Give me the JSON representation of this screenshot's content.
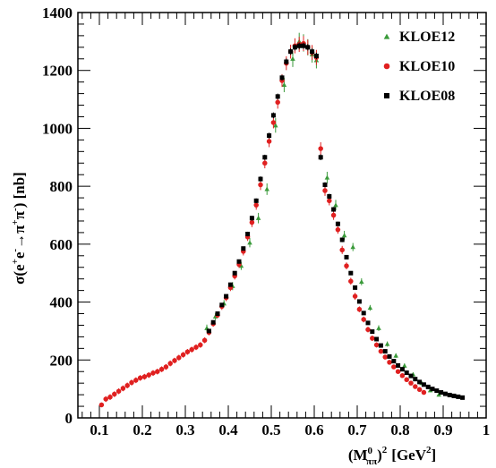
{
  "chart_data": {
    "type": "scatter",
    "title": "",
    "xlabel": "(M⁰ππ)² [GeV²]",
    "xlabel_parts": {
      "open": "(M",
      "sup": "0",
      "sub": "ππ",
      "close": ")",
      "pow": "2",
      "unit": "[GeV",
      "unit_pow": "2",
      "unit_close": "]"
    },
    "ylabel": "σ(e⁺e⁻→π⁺π⁻) [nb]",
    "ylabel_parts": {
      "a": "σ(e",
      "b": "+",
      "c": "e",
      "d": "-",
      "e": "→π",
      "f": "+",
      "g": "π",
      "h": "-",
      "i": ") [nb]"
    },
    "xlim": [
      0.05,
      1.0
    ],
    "ylim": [
      0,
      1400
    ],
    "x_ticks": [
      "0.1",
      "0.2",
      "0.3",
      "0.4",
      "0.5",
      "0.6",
      "0.7",
      "0.8",
      "0.9",
      "1"
    ],
    "y_ticks": [
      "0",
      "200",
      "400",
      "600",
      "800",
      "1000",
      "1200",
      "1400"
    ],
    "grid": false,
    "legend_position": "top-right",
    "series": [
      {
        "name": "KLOE12",
        "color": "#3a9a3a",
        "marker": "triangle",
        "x": [
          0.35,
          0.37,
          0.39,
          0.41,
          0.43,
          0.45,
          0.47,
          0.49,
          0.51,
          0.53,
          0.55,
          0.565,
          0.575,
          0.585,
          0.595,
          0.605,
          0.63,
          0.65,
          0.67,
          0.69,
          0.71,
          0.73,
          0.75,
          0.77,
          0.79,
          0.81,
          0.83,
          0.85,
          0.87,
          0.89
        ],
        "y": [
          310,
          350,
          395,
          455,
          525,
          605,
          690,
          790,
          1010,
          1150,
          1240,
          1300,
          1295,
          1280,
          1255,
          1235,
          830,
          735,
          630,
          590,
          470,
          380,
          310,
          255,
          215,
          180,
          150,
          120,
          95,
          80
        ],
        "err": [
          12,
          12,
          12,
          14,
          14,
          16,
          18,
          20,
          25,
          25,
          28,
          30,
          30,
          28,
          28,
          28,
          20,
          18,
          16,
          14,
          12,
          10,
          10,
          9,
          8,
          8,
          7,
          6,
          6,
          6
        ]
      },
      {
        "name": "KLOE10",
        "color": "#e02020",
        "marker": "circle",
        "x": [
          0.105,
          0.115,
          0.125,
          0.135,
          0.145,
          0.155,
          0.165,
          0.175,
          0.185,
          0.195,
          0.205,
          0.215,
          0.225,
          0.235,
          0.245,
          0.255,
          0.265,
          0.275,
          0.285,
          0.295,
          0.305,
          0.315,
          0.325,
          0.335,
          0.345,
          0.355,
          0.365,
          0.375,
          0.385,
          0.395,
          0.405,
          0.415,
          0.425,
          0.435,
          0.445,
          0.455,
          0.465,
          0.475,
          0.485,
          0.495,
          0.505,
          0.515,
          0.525,
          0.535,
          0.545,
          0.555,
          0.565,
          0.575,
          0.585,
          0.595,
          0.605,
          0.615,
          0.625,
          0.635,
          0.645,
          0.655,
          0.665,
          0.675,
          0.685,
          0.695,
          0.705,
          0.715,
          0.725,
          0.735,
          0.745,
          0.755,
          0.765,
          0.775,
          0.785,
          0.795,
          0.805,
          0.815,
          0.825,
          0.835,
          0.845,
          0.855
        ],
        "y": [
          45,
          65,
          72,
          82,
          92,
          102,
          112,
          122,
          130,
          138,
          142,
          148,
          155,
          160,
          168,
          176,
          188,
          198,
          208,
          218,
          228,
          236,
          244,
          252,
          268,
          295,
          325,
          355,
          385,
          415,
          450,
          490,
          530,
          575,
          625,
          675,
          735,
          805,
          880,
          955,
          1020,
          1090,
          1165,
          1225,
          1265,
          1285,
          1290,
          1293,
          1280,
          1262,
          1245,
          930,
          785,
          750,
          700,
          650,
          580,
          525,
          472,
          420,
          375,
          340,
          305,
          275,
          252,
          230,
          210,
          192,
          176,
          160,
          146,
          132,
          120,
          108,
          98,
          88
        ],
        "err": [
          8,
          10,
          10,
          10,
          10,
          10,
          10,
          10,
          10,
          10,
          10,
          10,
          10,
          10,
          10,
          10,
          10,
          10,
          10,
          10,
          10,
          10,
          10,
          10,
          10,
          10,
          10,
          10,
          12,
          12,
          12,
          12,
          12,
          14,
          14,
          16,
          16,
          18,
          18,
          20,
          20,
          22,
          22,
          24,
          24,
          26,
          26,
          26,
          26,
          26,
          26,
          22,
          18,
          16,
          16,
          14,
          14,
          12,
          12,
          12,
          10,
          10,
          10,
          9,
          9,
          8,
          8,
          8,
          7,
          7,
          6,
          6,
          6,
          6,
          5,
          5
        ]
      },
      {
        "name": "KLOE08",
        "color": "#000000",
        "marker": "square",
        "x": [
          0.355,
          0.365,
          0.375,
          0.385,
          0.395,
          0.405,
          0.415,
          0.425,
          0.435,
          0.445,
          0.455,
          0.465,
          0.475,
          0.485,
          0.495,
          0.505,
          0.515,
          0.525,
          0.535,
          0.545,
          0.555,
          0.565,
          0.575,
          0.585,
          0.595,
          0.605,
          0.615,
          0.625,
          0.635,
          0.645,
          0.655,
          0.665,
          0.675,
          0.685,
          0.695,
          0.705,
          0.715,
          0.725,
          0.735,
          0.745,
          0.755,
          0.765,
          0.775,
          0.785,
          0.795,
          0.805,
          0.815,
          0.825,
          0.835,
          0.845,
          0.855,
          0.865,
          0.875,
          0.885,
          0.895,
          0.905,
          0.915,
          0.925,
          0.935,
          0.945
        ],
        "y": [
          300,
          330,
          360,
          390,
          420,
          460,
          500,
          540,
          585,
          635,
          690,
          750,
          825,
          900,
          975,
          1045,
          1110,
          1175,
          1230,
          1265,
          1280,
          1285,
          1285,
          1280,
          1265,
          1250,
          900,
          805,
          765,
          720,
          670,
          615,
          555,
          500,
          450,
          402,
          362,
          328,
          298,
          272,
          250,
          230,
          212,
          196,
          181,
          168,
          156,
          145,
          134,
          124,
          115,
          107,
          100,
          94,
          88,
          83,
          79,
          76,
          73,
          70
        ],
        "err": [
          6,
          6,
          6,
          6,
          6,
          7,
          7,
          7,
          7,
          8,
          8,
          8,
          9,
          9,
          10,
          10,
          10,
          10,
          11,
          11,
          11,
          11,
          11,
          11,
          11,
          11,
          10,
          9,
          9,
          8,
          8,
          8,
          7,
          7,
          7,
          6,
          6,
          6,
          5,
          5,
          5,
          5,
          4,
          4,
          4,
          4,
          4,
          3,
          3,
          3,
          3,
          3,
          3,
          3,
          3,
          3,
          3,
          3,
          3,
          3
        ]
      }
    ]
  }
}
